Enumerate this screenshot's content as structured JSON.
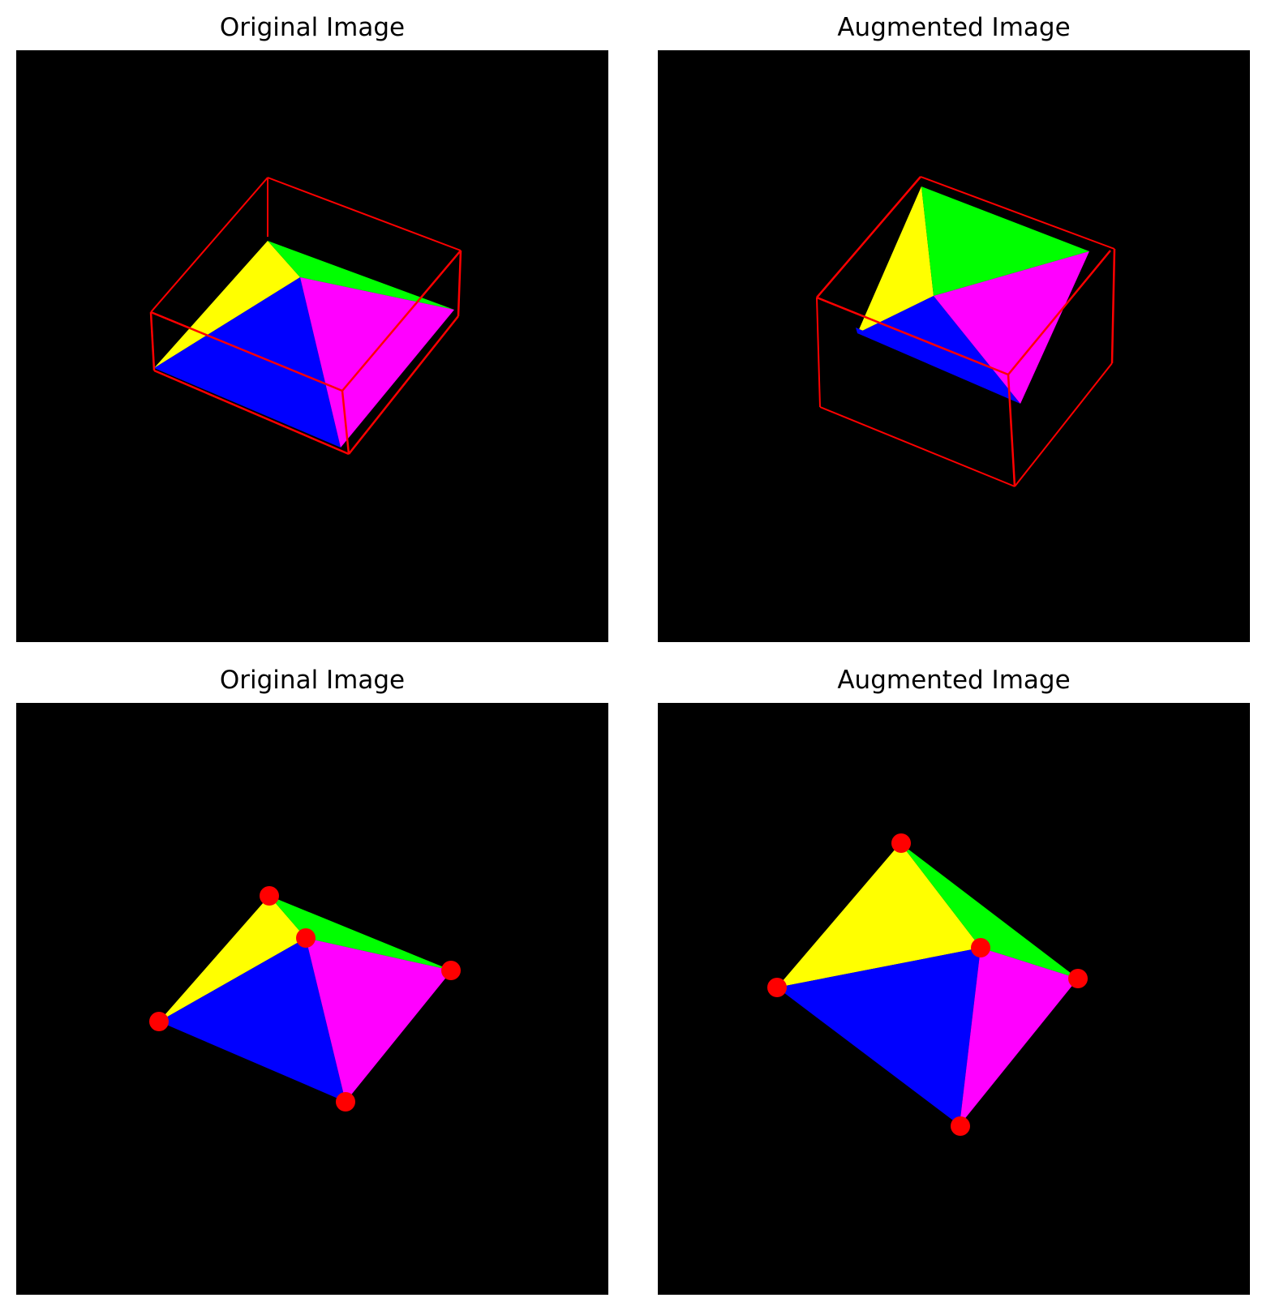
{
  "panels": [
    {
      "id": "top-left",
      "title": "Original Image"
    },
    {
      "id": "top-right",
      "title": "Augmented Image"
    },
    {
      "id": "bottom-left",
      "title": "Original Image"
    },
    {
      "id": "bottom-right",
      "title": "Augmented Image"
    }
  ],
  "colors": {
    "background": "#000000",
    "face_yellow": "#ffff00",
    "face_green": "#00ff00",
    "face_blue": "#0000ff",
    "face_magenta": "#ff00ff",
    "bounding_box": "#ff0000",
    "keypoint": "#ff0000"
  }
}
